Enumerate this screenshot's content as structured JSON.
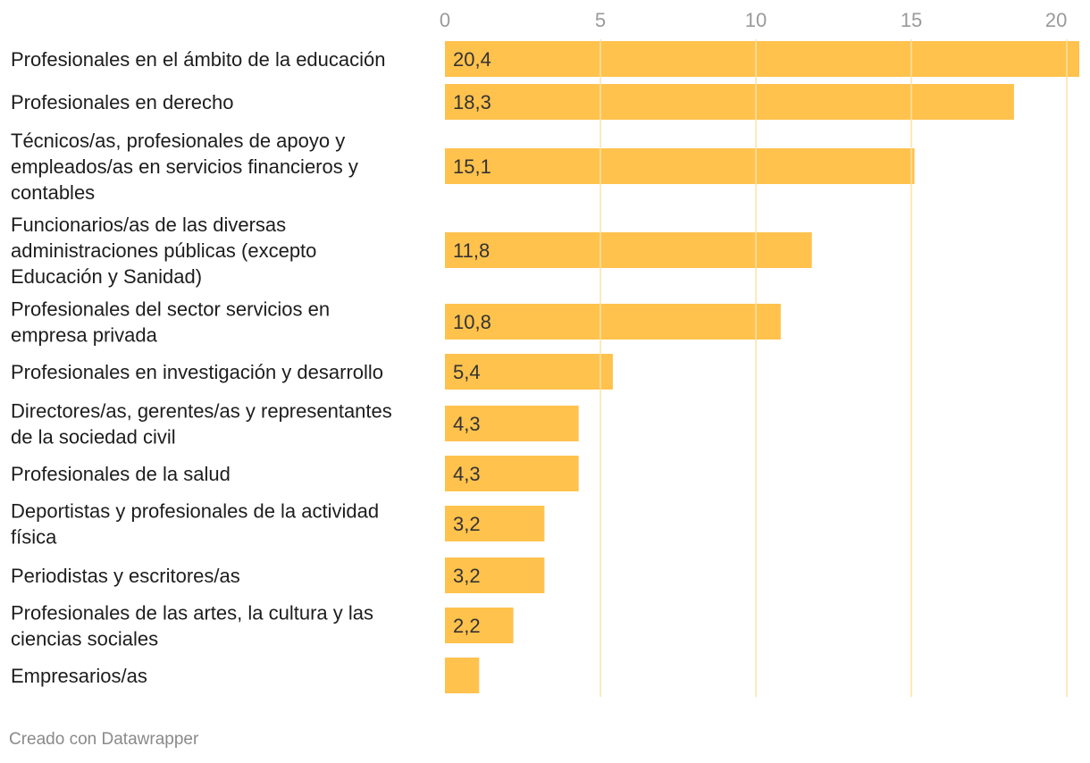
{
  "chart_data": {
    "type": "bar",
    "orientation": "horizontal",
    "categories": [
      [
        "Profesionales en el ámbito de la educación"
      ],
      [
        "Profesionales en derecho"
      ],
      [
        "Técnicos/as, profesionales de apoyo y",
        "empleados/as en servicios financieros y",
        "contables"
      ],
      [
        "Funcionarios/as de las diversas",
        "administraciones públicas (excepto",
        "Educación y Sanidad)"
      ],
      [
        "Profesionales del sector servicios en",
        "empresa privada"
      ],
      [
        "Profesionales en investigación y desarrollo"
      ],
      [
        "Directores/as, gerentes/as y representantes",
        "de la sociedad civil"
      ],
      [
        "Profesionales de la salud"
      ],
      [
        "Deportistas y profesionales de la actividad",
        "física"
      ],
      [
        "Periodistas y escritores/as"
      ],
      [
        "Profesionales de las artes, la cultura y las",
        "ciencias sociales"
      ],
      [
        "Empresarios/as"
      ]
    ],
    "values": [
      20.4,
      18.3,
      15.1,
      11.8,
      10.8,
      5.4,
      4.3,
      4.3,
      3.2,
      3.2,
      2.2,
      1.1
    ],
    "value_labels": [
      "20,4",
      "18,3",
      "15,1",
      "11,8",
      "10,8",
      "5,4",
      "4,3",
      "4,3",
      "3,2",
      "3,2",
      "2,2",
      ""
    ],
    "x_ticks": [
      0,
      5,
      10,
      15,
      20
    ],
    "x_tick_labels": [
      "0",
      "5",
      "10",
      "15",
      "20"
    ],
    "xlim": [
      0,
      20.4
    ],
    "grid": true,
    "bar_color": "#ffc24d",
    "grid_color": "#ffe2a6"
  },
  "footer": {
    "credit": "Creado con Datawrapper"
  }
}
